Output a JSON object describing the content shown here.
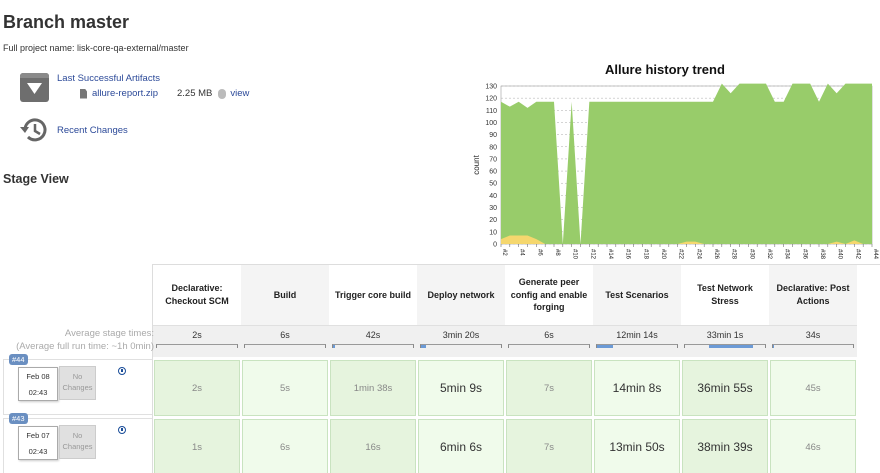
{
  "header": {
    "title": "Branch master",
    "full_project_name": "Full project name: lisk-core-qa-external/master"
  },
  "artifacts": {
    "link_label": "Last Successful Artifacts",
    "file_name": "allure-report.zip",
    "file_size": "2.25 MB",
    "view_label": "view"
  },
  "recent_changes_label": "Recent Changes",
  "stage_view_title": "Stage View",
  "colors": {
    "link": "#2c4a99",
    "area_fill": "#98cc6a",
    "area_warn": "#f5d76e",
    "badge": "#6a8fc1"
  },
  "chart_data": {
    "type": "area",
    "title": "Allure history trend",
    "xlabel": "",
    "ylabel": "count",
    "ylim": [
      0,
      130
    ],
    "yticks": [
      0,
      10,
      20,
      30,
      40,
      50,
      60,
      70,
      80,
      90,
      100,
      110,
      120,
      130
    ],
    "x": [
      "#2",
      "#3",
      "#4",
      "#5",
      "#6",
      "#7",
      "#8",
      "#9",
      "#10",
      "#11",
      "#12",
      "#13",
      "#14",
      "#15",
      "#16",
      "#17",
      "#18",
      "#19",
      "#20",
      "#21",
      "#22",
      "#23",
      "#24",
      "#25",
      "#26",
      "#27",
      "#28",
      "#29",
      "#30",
      "#31",
      "#32",
      "#33",
      "#34",
      "#35",
      "#36",
      "#37",
      "#38",
      "#39",
      "#40",
      "#41",
      "#42",
      "#43",
      "#44"
    ],
    "xtick_labels": [
      "#2",
      "#4",
      "#6",
      "#8",
      "#10",
      "#12",
      "#14",
      "#16",
      "#18",
      "#20",
      "#22",
      "#24",
      "#26",
      "#28",
      "#30",
      "#32",
      "#34",
      "#36",
      "#38",
      "#40",
      "#42",
      "#44"
    ],
    "series": [
      {
        "values": [
          117,
          113,
          117,
          112,
          117,
          117,
          117,
          0,
          117,
          0,
          117,
          117,
          117,
          117,
          117,
          117,
          117,
          117,
          117,
          117,
          117,
          117,
          117,
          117,
          117,
          132,
          124,
          132,
          132,
          132,
          132,
          117,
          117,
          132,
          132,
          132,
          117,
          132,
          124,
          132,
          132,
          132,
          132
        ]
      },
      {
        "values": [
          4,
          7,
          7,
          7,
          4,
          0,
          0,
          0,
          0,
          0,
          0,
          0,
          0,
          0,
          0,
          0,
          0,
          0,
          0,
          0,
          0,
          2,
          2,
          0,
          0,
          0,
          0,
          0,
          0,
          0,
          0,
          0,
          0,
          0,
          0,
          0,
          0,
          0,
          2,
          0,
          3,
          0,
          0
        ]
      }
    ]
  },
  "stages": {
    "average_label": "Average stage times:",
    "average_full_label": "(Average full run time: ~1h 0min)",
    "headers": [
      "Declarative: Checkout SCM",
      "Build",
      "Trigger core build",
      "Deploy network",
      "Generate peer config and enable forging",
      "Test Scenarios",
      "Test Network Stress",
      "Declarative: Post Actions"
    ],
    "averages": [
      "2s",
      "6s",
      "42s",
      "3min 20s",
      "6s",
      "12min 14s",
      "33min 1s",
      "34s"
    ],
    "average_fraction": [
      0,
      0,
      0.02,
      0.06,
      0,
      0.2,
      0.55,
      0.01
    ]
  },
  "runs": [
    {
      "badge": "#44",
      "date": "Feb 08",
      "time": "02:43",
      "changes": "No Changes",
      "cells": [
        "2s",
        "5s",
        "1min 38s",
        "5min 9s",
        "7s",
        "14min 8s",
        "36min 55s",
        "45s"
      ]
    },
    {
      "badge": "#43",
      "date": "Feb 07",
      "time": "02:43",
      "changes": "No Changes",
      "cells": [
        "1s",
        "6s",
        "16s",
        "6min 6s",
        "7s",
        "13min 50s",
        "38min 39s",
        "46s"
      ]
    }
  ]
}
